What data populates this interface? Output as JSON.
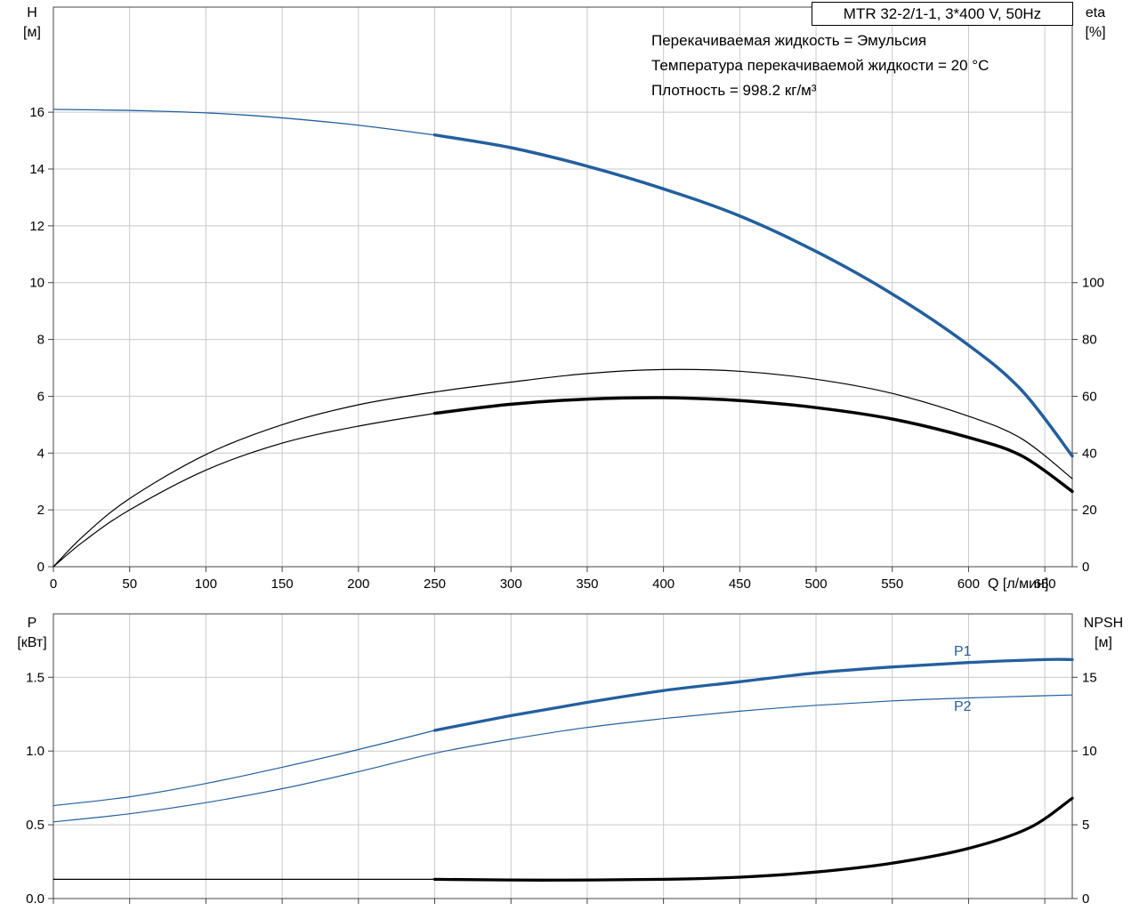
{
  "header": {
    "title": "MTR 32-2/1-1, 3*400 V, 50Hz"
  },
  "annotations": {
    "lines": [
      "Перекачиваемая жидкость = Эмульсия",
      "Температура перекачиваемой жидкости = 20 °C",
      "Плотность = 998.2 кг/м³"
    ]
  },
  "colors": {
    "curve_blue": "#235f9e",
    "curve_black": "#000000",
    "grid": "#c9c9c9",
    "border": "#444444",
    "text": "#000000"
  },
  "chart_data": [
    {
      "id": "head-efficiency-chart",
      "type": "line",
      "left_axis_title": "H",
      "left_axis_unit": "[м]",
      "right_axis_title": "eta",
      "right_axis_unit": "[%]",
      "x_axis": {
        "label": "Q [л/мин]",
        "min": 0,
        "max": 668,
        "ticks": [
          0,
          50,
          100,
          150,
          200,
          250,
          300,
          350,
          400,
          450,
          500,
          550,
          600,
          650
        ],
        "tick_labels": [
          "0",
          "50",
          "100",
          "150",
          "200",
          "250",
          "300",
          "350",
          "400",
          "450",
          "500",
          "550",
          "600",
          "650"
        ],
        "show_labels": true
      },
      "y_left": {
        "label": "H [м]",
        "min": 0,
        "max": 19.7,
        "ticks": [
          0,
          2,
          4,
          6,
          8,
          10,
          12,
          14,
          16
        ],
        "tick_labels": [
          "0",
          "2",
          "4",
          "6",
          "8",
          "10",
          "12",
          "14",
          "16"
        ]
      },
      "y_right": {
        "label": "eta [%]",
        "min": 0,
        "max": 197,
        "ticks": [
          0,
          20,
          40,
          60,
          80,
          100
        ],
        "tick_labels": [
          "0",
          "20",
          "40",
          "60",
          "80",
          "100"
        ]
      },
      "series": [
        {
          "name": "head-curve",
          "axis": "left",
          "color_key": "curve_blue",
          "segments": [
            {
              "width": 1.3,
              "points": [
                [
                  0,
                  16.1
                ],
                [
                  60,
                  16.05
                ],
                [
                  120,
                  15.92
                ],
                [
                  190,
                  15.6
                ],
                [
                  250,
                  15.2
                ]
              ]
            },
            {
              "width": 3.5,
              "points": [
                [
                  250,
                  15.2
                ],
                [
                  300,
                  14.75
                ],
                [
                  350,
                  14.1
                ],
                [
                  400,
                  13.3
                ],
                [
                  450,
                  12.35
                ],
                [
                  500,
                  11.1
                ],
                [
                  550,
                  9.6
                ],
                [
                  600,
                  7.8
                ],
                [
                  635,
                  6.2
                ],
                [
                  668,
                  3.9
                ]
              ]
            }
          ]
        },
        {
          "name": "efficiency-pump-curve",
          "axis": "right",
          "color_key": "curve_black",
          "segments": [
            {
              "width": 1.2,
              "points": [
                [
                  0,
                  0
                ],
                [
                  20,
                  11
                ],
                [
                  50,
                  24
                ],
                [
                  100,
                  39.5
                ],
                [
                  150,
                  50
                ],
                [
                  200,
                  57
                ],
                [
                  250,
                  61.5
                ],
                [
                  300,
                  65
                ],
                [
                  350,
                  68
                ],
                [
                  400,
                  69.4
                ],
                [
                  450,
                  68.8
                ],
                [
                  500,
                  66
                ],
                [
                  550,
                  61
                ],
                [
                  600,
                  53
                ],
                [
                  635,
                  45
                ],
                [
                  668,
                  31
                ]
              ]
            }
          ]
        },
        {
          "name": "efficiency-total-curve",
          "axis": "right",
          "color_key": "curve_black",
          "segments": [
            {
              "width": 1.2,
              "points": [
                [
                  0,
                  0
                ],
                [
                  20,
                  9
                ],
                [
                  50,
                  20
                ],
                [
                  100,
                  34
                ],
                [
                  150,
                  43.5
                ],
                [
                  200,
                  49.5
                ],
                [
                  250,
                  54
                ]
              ]
            },
            {
              "width": 3.5,
              "points": [
                [
                  250,
                  54
                ],
                [
                  300,
                  57.2
                ],
                [
                  350,
                  59
                ],
                [
                  400,
                  59.5
                ],
                [
                  450,
                  58.5
                ],
                [
                  500,
                  56
                ],
                [
                  550,
                  52
                ],
                [
                  600,
                  45.5
                ],
                [
                  635,
                  39
                ],
                [
                  668,
                  26.5
                ]
              ]
            }
          ]
        }
      ]
    },
    {
      "id": "power-npsh-chart",
      "type": "line",
      "left_axis_title": "P",
      "left_axis_unit": "[кВт]",
      "right_axis_title": "NPSH",
      "right_axis_unit": "[м]",
      "curve_labels": {
        "p1": "P1",
        "p2": "P2"
      },
      "x_axis": {
        "label": "",
        "min": 0,
        "max": 668,
        "ticks": [
          0,
          50,
          100,
          150,
          200,
          250,
          300,
          350,
          400,
          450,
          500,
          550,
          600,
          650
        ],
        "tick_labels": [],
        "show_labels": false
      },
      "y_left": {
        "label": "P [кВт]",
        "min": 0,
        "max": 1.93,
        "ticks": [
          0,
          0.5,
          1,
          1.5
        ],
        "tick_labels": [
          "0.0",
          "0.5",
          "1.0",
          "1.5"
        ]
      },
      "y_right": {
        "label": "NPSH [м]",
        "min": 0,
        "max": 19.3,
        "ticks": [
          0,
          5,
          10,
          15
        ],
        "tick_labels": [
          "0",
          "5",
          "10",
          "15"
        ]
      },
      "series": [
        {
          "name": "power-p1-curve",
          "axis": "left",
          "color_key": "curve_blue",
          "segments": [
            {
              "width": 1.2,
              "points": [
                [
                  0,
                  0.63
                ],
                [
                  50,
                  0.69
                ],
                [
                  100,
                  0.78
                ],
                [
                  150,
                  0.89
                ],
                [
                  200,
                  1.01
                ],
                [
                  250,
                  1.14
                ]
              ]
            },
            {
              "width": 3.3,
              "points": [
                [
                  250,
                  1.14
                ],
                [
                  300,
                  1.24
                ],
                [
                  350,
                  1.33
                ],
                [
                  400,
                  1.41
                ],
                [
                  450,
                  1.47
                ],
                [
                  500,
                  1.53
                ],
                [
                  550,
                  1.57
                ],
                [
                  600,
                  1.6
                ],
                [
                  650,
                  1.62
                ],
                [
                  668,
                  1.62
                ]
              ]
            }
          ]
        },
        {
          "name": "power-p2-curve",
          "axis": "left",
          "color_key": "curve_blue",
          "segments": [
            {
              "width": 1.2,
              "points": [
                [
                  0,
                  0.52
                ],
                [
                  50,
                  0.575
                ],
                [
                  100,
                  0.65
                ],
                [
                  150,
                  0.745
                ],
                [
                  200,
                  0.86
                ],
                [
                  250,
                  0.985
                ],
                [
                  300,
                  1.08
                ],
                [
                  350,
                  1.16
                ],
                [
                  400,
                  1.22
                ],
                [
                  450,
                  1.27
                ],
                [
                  500,
                  1.31
                ],
                [
                  550,
                  1.34
                ],
                [
                  600,
                  1.36
                ],
                [
                  650,
                  1.375
                ],
                [
                  668,
                  1.38
                ]
              ]
            }
          ]
        },
        {
          "name": "npsh-curve",
          "axis": "right",
          "color_key": "curve_black",
          "segments": [
            {
              "width": 1.2,
              "points": [
                [
                  0,
                  1.3
                ],
                [
                  120,
                  1.3
                ],
                [
                  250,
                  1.3
                ]
              ]
            },
            {
              "width": 3.3,
              "points": [
                [
                  250,
                  1.3
                ],
                [
                  320,
                  1.25
                ],
                [
                  400,
                  1.3
                ],
                [
                  450,
                  1.45
                ],
                [
                  500,
                  1.8
                ],
                [
                  550,
                  2.4
                ],
                [
                  600,
                  3.4
                ],
                [
                  640,
                  4.8
                ],
                [
                  668,
                  6.8
                ]
              ]
            }
          ]
        }
      ]
    }
  ]
}
